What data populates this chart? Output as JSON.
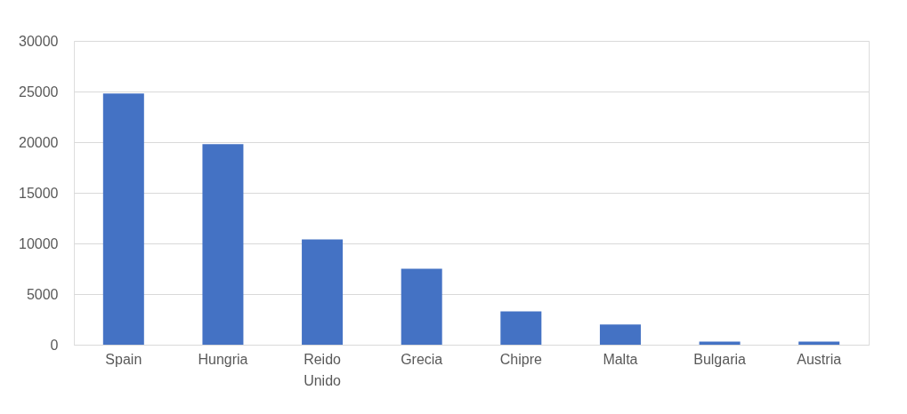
{
  "chart_data": {
    "type": "bar",
    "categories": [
      "Spain",
      "Hungria",
      "Reido Unido",
      "Grecia",
      "Chipre",
      "Malta",
      "Bulgaria",
      "Austria"
    ],
    "values": [
      24800,
      19800,
      10400,
      7500,
      3300,
      2000,
      300,
      300
    ],
    "color": "#4472c4",
    "ylim": [
      0,
      30000
    ],
    "yticks": [
      0,
      5000,
      10000,
      15000,
      20000,
      25000,
      30000
    ],
    "grid": "y"
  }
}
